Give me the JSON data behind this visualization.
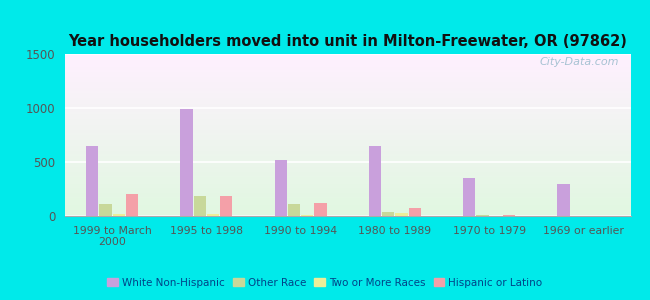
{
  "title": "Year householders moved into unit in Milton-Freewater, OR (97862)",
  "categories": [
    "1999 to March\n2000",
    "1995 to 1998",
    "1990 to 1994",
    "1980 to 1989",
    "1970 to 1979",
    "1969 or earlier"
  ],
  "series": {
    "White Non-Hispanic": [
      650,
      990,
      515,
      645,
      355,
      295
    ],
    "Other Race": [
      110,
      185,
      110,
      35,
      5,
      0
    ],
    "Two or More Races": [
      20,
      15,
      10,
      30,
      0,
      0
    ],
    "Hispanic or Latino": [
      205,
      185,
      120,
      70,
      5,
      0
    ]
  },
  "colors": {
    "White Non-Hispanic": "#c9a0dc",
    "Other Race": "#c8d89a",
    "Two or More Races": "#eeee99",
    "Hispanic or Latino": "#f4a0a8"
  },
  "ylim": [
    0,
    1500
  ],
  "yticks": [
    0,
    500,
    1000,
    1500
  ],
  "bar_width": 0.13,
  "fig_bg": "#00eaea",
  "watermark": "City-Data.com"
}
